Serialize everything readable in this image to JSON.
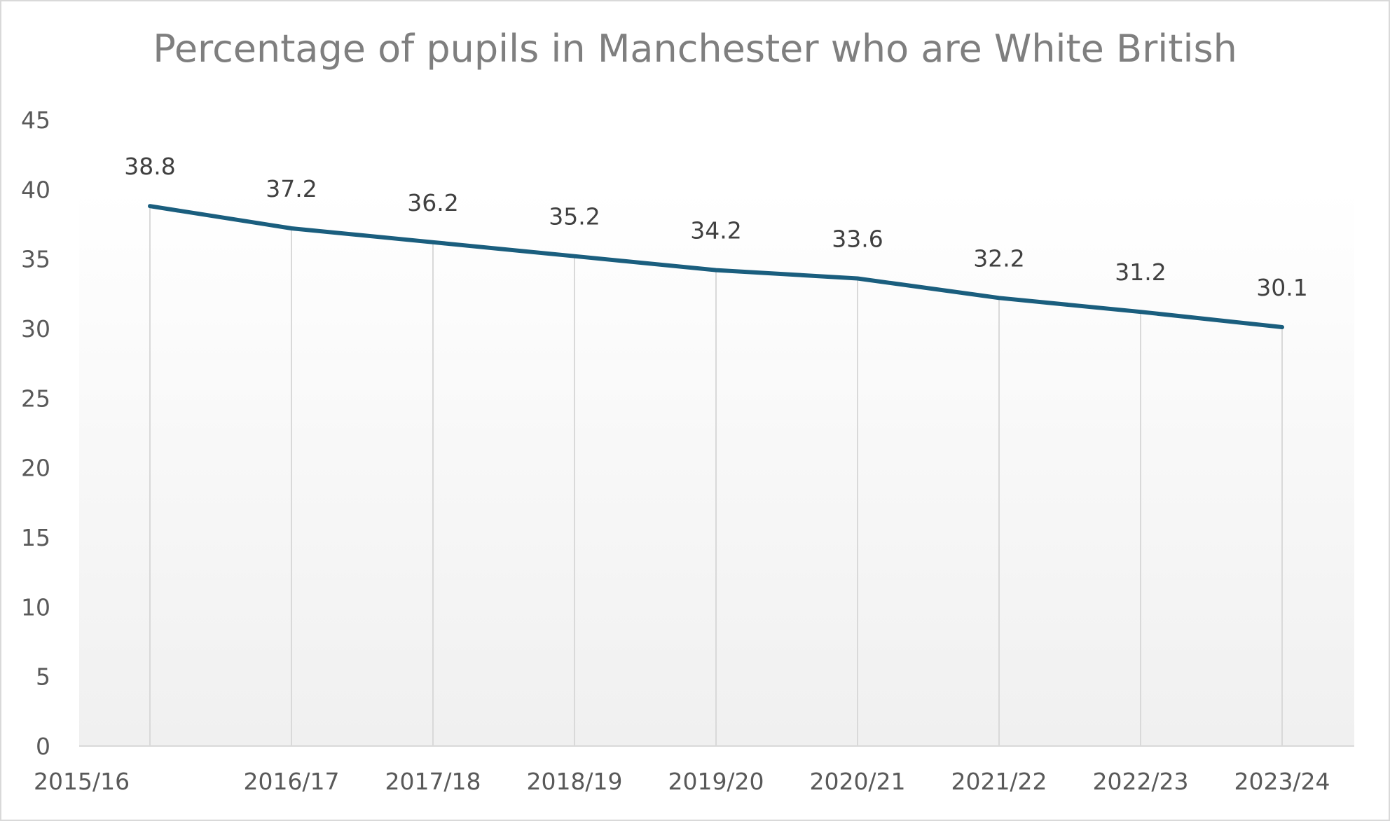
{
  "chart_data": {
    "type": "line",
    "title": "Percentage of pupils in Manchester who are White British",
    "categories": [
      "2015/16",
      "2016/17",
      "2017/18",
      "2018/19",
      "2019/20",
      "2020/21",
      "2021/22",
      "2022/23",
      "2023/24"
    ],
    "series": [
      {
        "values": [
          38.8,
          37.2,
          36.2,
          35.2,
          34.2,
          33.6,
          32.2,
          31.2,
          30.1
        ]
      }
    ],
    "ylim": [
      0,
      45
    ],
    "yticks": [
      0,
      5,
      10,
      15,
      20,
      25,
      30,
      35,
      40,
      45
    ],
    "xlabel": "",
    "ylabel": "",
    "grid": "vertical drop lines",
    "legend": "none",
    "colors": {
      "line": "#1a5e7e",
      "droplines": "#d9d9d9",
      "plot_gradient_top": "#ffffff",
      "plot_gradient_bottom": "#f0f0f0"
    }
  }
}
